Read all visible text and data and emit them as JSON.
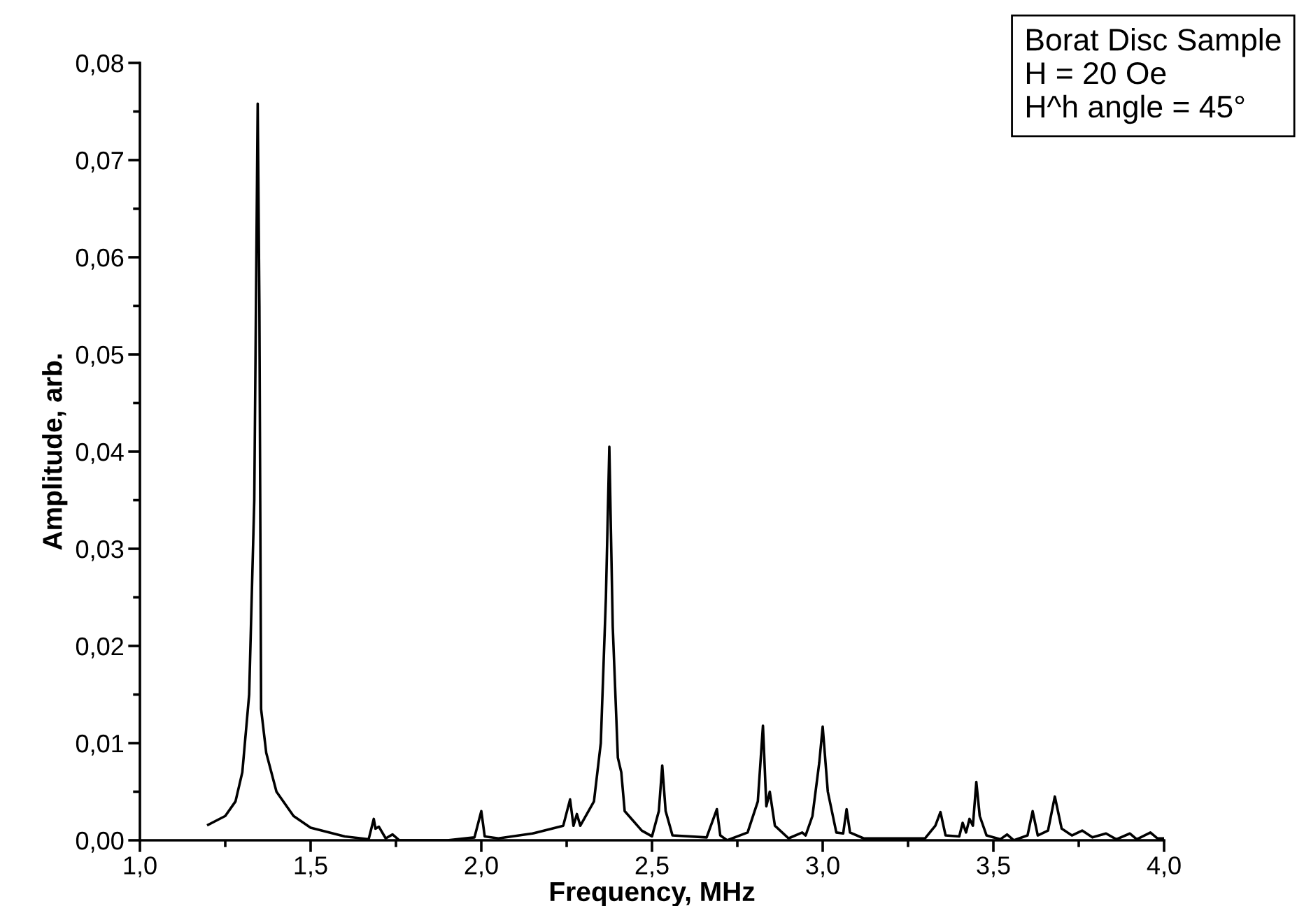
{
  "chart_data": {
    "type": "line",
    "xlabel": "Frequency, MHz",
    "ylabel": "Amplitude, arb.",
    "annotations": [
      "Borat Disc Sample\nH = 20 Oe\nH^h angle = 45°"
    ],
    "series": [
      {
        "color": "#000000",
        "x": [
          1.2,
          1.25,
          1.28,
          1.3,
          1.32,
          1.335,
          1.345,
          1.35,
          1.355,
          1.37,
          1.4,
          1.45,
          1.5,
          1.6,
          1.67,
          1.685,
          1.69,
          1.7,
          1.72,
          1.74,
          1.76,
          1.9,
          1.98,
          2.0,
          2.01,
          2.05,
          2.15,
          2.24,
          2.26,
          2.27,
          2.28,
          2.29,
          2.33,
          2.35,
          2.365,
          2.375,
          2.385,
          2.4,
          2.41,
          2.42,
          2.47,
          2.5,
          2.52,
          2.53,
          2.54,
          2.56,
          2.66,
          2.69,
          2.7,
          2.72,
          2.78,
          2.81,
          2.825,
          2.835,
          2.845,
          2.86,
          2.9,
          2.94,
          2.95,
          2.97,
          2.99,
          3.0,
          3.015,
          3.04,
          3.06,
          3.07,
          3.08,
          3.12,
          3.3,
          3.33,
          3.345,
          3.36,
          3.4,
          3.41,
          3.42,
          3.43,
          3.44,
          3.45,
          3.46,
          3.48,
          3.52,
          3.54,
          3.56,
          3.6,
          3.615,
          3.63,
          3.66,
          3.68,
          3.7,
          3.73,
          3.76,
          3.79,
          3.83,
          3.86,
          3.9,
          3.92,
          3.96,
          3.98,
          4.0
        ],
        "values": [
          0.0016,
          0.0025,
          0.004,
          0.007,
          0.015,
          0.035,
          0.0758,
          0.055,
          0.0135,
          0.009,
          0.005,
          0.0025,
          0.0013,
          0.0004,
          0.0001,
          0.0022,
          0.0012,
          0.0014,
          0.0002,
          0.0006,
          0.0,
          0.0,
          0.0003,
          0.003,
          0.0004,
          0.0002,
          0.0007,
          0.0015,
          0.0042,
          0.0015,
          0.0027,
          0.0015,
          0.004,
          0.01,
          0.025,
          0.0405,
          0.022,
          0.0085,
          0.007,
          0.003,
          0.001,
          0.0004,
          0.003,
          0.0077,
          0.003,
          0.0005,
          0.0003,
          0.0032,
          0.0005,
          0.0,
          0.0008,
          0.004,
          0.0118,
          0.0035,
          0.005,
          0.0015,
          0.0002,
          0.0008,
          0.0005,
          0.0025,
          0.008,
          0.0117,
          0.005,
          0.0008,
          0.0007,
          0.0032,
          0.0008,
          0.0002,
          0.0002,
          0.0015,
          0.0029,
          0.0005,
          0.0004,
          0.0018,
          0.0008,
          0.0022,
          0.0015,
          0.006,
          0.0025,
          0.0005,
          0.0001,
          0.0006,
          0.0,
          0.0005,
          0.003,
          0.0005,
          0.001,
          0.0045,
          0.0012,
          0.0005,
          0.001,
          0.0003,
          0.0007,
          0.0001,
          0.0007,
          0.0001,
          0.0008,
          0.0002,
          0.0002
        ]
      }
    ],
    "xlim": [
      1.0,
      4.0
    ],
    "xticks": [
      {
        "value": 1.0,
        "label": "1,0"
      },
      {
        "value": 1.25,
        "label": null
      },
      {
        "value": 1.5,
        "label": "1,5"
      },
      {
        "value": 1.75,
        "label": null
      },
      {
        "value": 2.0,
        "label": "2,0"
      },
      {
        "value": 2.25,
        "label": null
      },
      {
        "value": 2.5,
        "label": "2,5"
      },
      {
        "value": 2.75,
        "label": null
      },
      {
        "value": 3.0,
        "label": "3,0"
      },
      {
        "value": 3.25,
        "label": null
      },
      {
        "value": 3.5,
        "label": "3,5"
      },
      {
        "value": 3.75,
        "label": null
      },
      {
        "value": 4.0,
        "label": "4,0"
      }
    ],
    "ylim": [
      0.0,
      0.08
    ],
    "yticks": [
      {
        "value": 0.0,
        "label": "0,00"
      },
      {
        "value": 0.005,
        "label": null
      },
      {
        "value": 0.01,
        "label": "0,01"
      },
      {
        "value": 0.015,
        "label": null
      },
      {
        "value": 0.02,
        "label": "0,02"
      },
      {
        "value": 0.025,
        "label": null
      },
      {
        "value": 0.03,
        "label": "0,03"
      },
      {
        "value": 0.035,
        "label": null
      },
      {
        "value": 0.04,
        "label": "0,04"
      },
      {
        "value": 0.045,
        "label": null
      },
      {
        "value": 0.05,
        "label": "0,05"
      },
      {
        "value": 0.055,
        "label": null
      },
      {
        "value": 0.06,
        "label": "0,06"
      },
      {
        "value": 0.065,
        "label": null
      },
      {
        "value": 0.07,
        "label": "0,07"
      },
      {
        "value": 0.075,
        "label": null
      },
      {
        "value": 0.08,
        "label": "0,08"
      }
    ],
    "grid": false,
    "legend": false,
    "marker": "none",
    "line_style": "solid"
  }
}
